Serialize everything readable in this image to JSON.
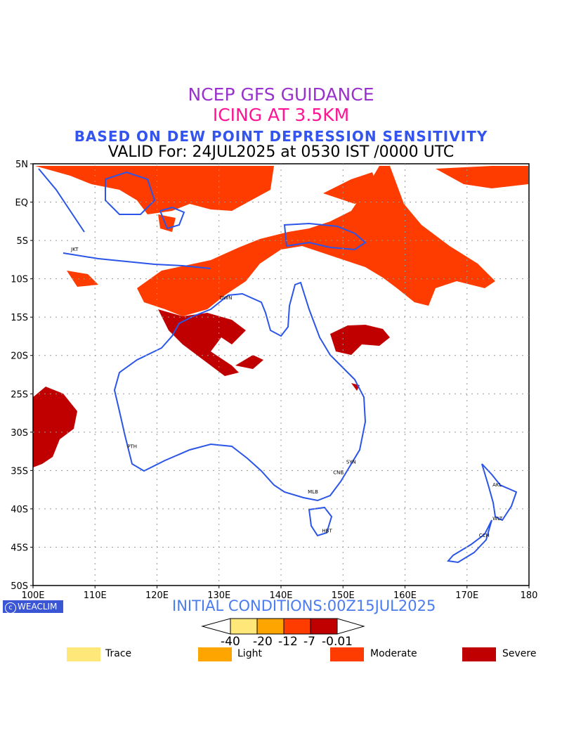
{
  "titles": {
    "line1": "NCEP GFS GUIDANCE",
    "line2": "ICING AT 3.5KM",
    "line3": "BASED ON DEW POINT DEPRESSION SENSITIVITY",
    "line4": "VALID For: 24JUL2025 at 0530 IST /0000 UTC"
  },
  "map": {
    "lon_ticks": [
      "100E",
      "110E",
      "120E",
      "130E",
      "140E",
      "150E",
      "160E",
      "170E",
      "180"
    ],
    "lat_ticks": [
      "5N",
      "EQ",
      "5S",
      "10S",
      "15S",
      "20S",
      "25S",
      "30S",
      "35S",
      "40S",
      "45S",
      "50S"
    ],
    "cities": [
      {
        "code": "JKT",
        "lon": 106.8,
        "lat": -6.2
      },
      {
        "code": "DWN",
        "lon": 130.8,
        "lat": -12.5
      },
      {
        "code": "PTH",
        "lon": 115.9,
        "lat": -31.9
      },
      {
        "code": "SYN",
        "lon": 151.2,
        "lat": -33.9
      },
      {
        "code": "CNB",
        "lon": 149.1,
        "lat": -35.3
      },
      {
        "code": "MLB",
        "lon": 145.0,
        "lat": -37.8
      },
      {
        "code": "HBT",
        "lon": 147.3,
        "lat": -42.9
      },
      {
        "code": "AKL",
        "lon": 174.8,
        "lat": -36.9
      },
      {
        "code": "WLT",
        "lon": 174.8,
        "lat": -41.3
      },
      {
        "code": "CCH",
        "lon": 172.6,
        "lat": -43.5
      }
    ]
  },
  "initial_conditions": "INITIAL CONDITIONS:00Z15JUL2025",
  "badge": "WEACLIM",
  "colorbar": {
    "labels": [
      "-40",
      "-20",
      "-12",
      "-7",
      "-0.01"
    ],
    "colors": [
      "#ffe77a",
      "#ffa500",
      "#ff3c00",
      "#c00000"
    ]
  },
  "legend": [
    {
      "label": "Trace",
      "color": "#ffe77a"
    },
    {
      "label": "Light",
      "color": "#ffa500"
    },
    {
      "label": "Moderate",
      "color": "#ff3c00"
    },
    {
      "label": "Severe",
      "color": "#c00000"
    }
  ]
}
